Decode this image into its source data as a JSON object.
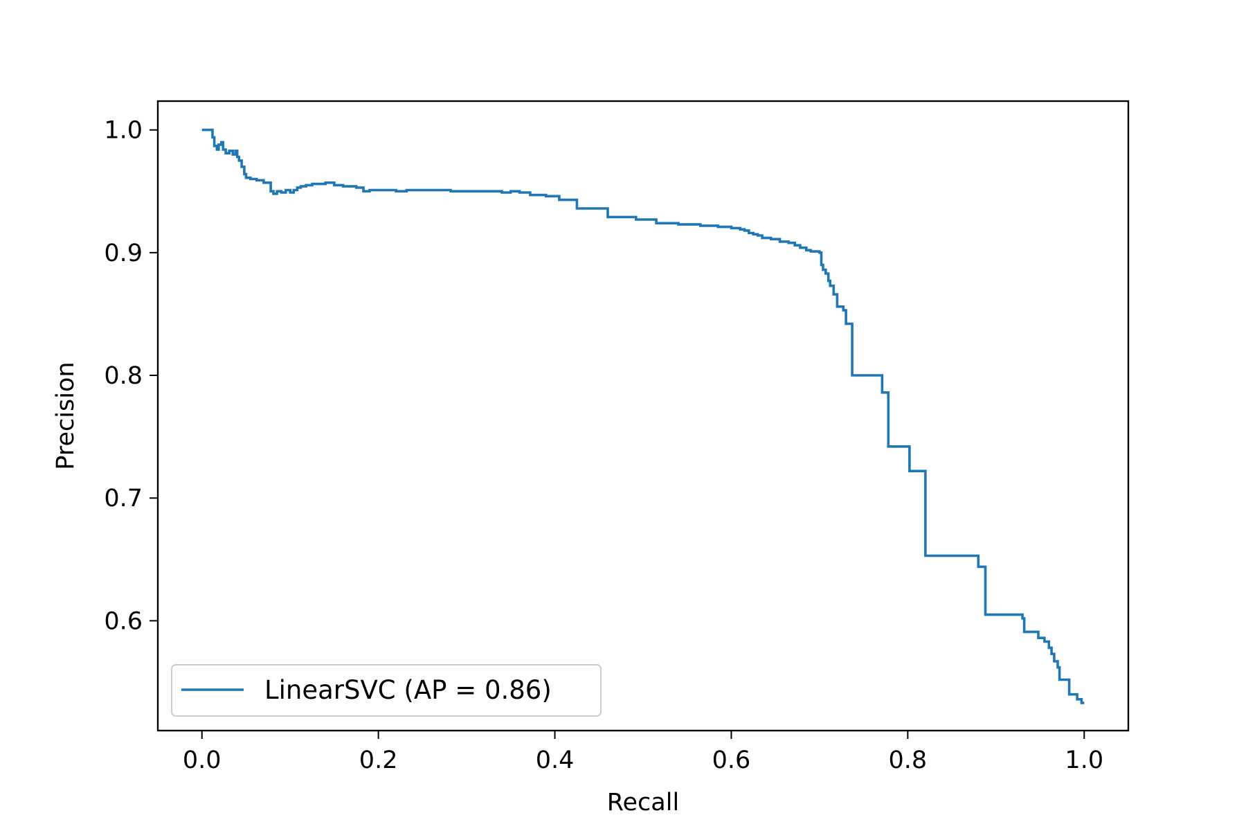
{
  "chart_data": {
    "type": "line",
    "title": "",
    "xlabel": "Recall",
    "ylabel": "Precision",
    "xlim": [
      -0.05,
      1.05
    ],
    "ylim": [
      0.5105,
      1.0235
    ],
    "xticks": [
      0.0,
      0.2,
      0.4,
      0.6,
      0.8,
      1.0
    ],
    "xtick_labels": [
      "0.0",
      "0.2",
      "0.4",
      "0.6",
      "0.8",
      "1.0"
    ],
    "yticks": [
      0.6,
      0.7,
      0.8,
      0.9,
      1.0
    ],
    "ytick_labels": [
      "0.6",
      "0.7",
      "0.8",
      "0.9",
      "1.0"
    ],
    "grid": false,
    "legend_position": "lower-left",
    "drawstyle": "steps-post",
    "series": [
      {
        "name": "LinearSVC (AP = 0.86)",
        "color": "#1f77b4",
        "points": [
          [
            0.0,
            1.0
          ],
          [
            0.012,
            1.0
          ],
          [
            0.012,
            0.994
          ],
          [
            0.014,
            0.987
          ],
          [
            0.017,
            0.984
          ],
          [
            0.019,
            0.988
          ],
          [
            0.022,
            0.99
          ],
          [
            0.024,
            0.984
          ],
          [
            0.027,
            0.981
          ],
          [
            0.031,
            0.983
          ],
          [
            0.035,
            0.98
          ],
          [
            0.038,
            0.983
          ],
          [
            0.04,
            0.978
          ],
          [
            0.042,
            0.975
          ],
          [
            0.045,
            0.97
          ],
          [
            0.048,
            0.964
          ],
          [
            0.05,
            0.961
          ],
          [
            0.055,
            0.96
          ],
          [
            0.062,
            0.959
          ],
          [
            0.07,
            0.957
          ],
          [
            0.078,
            0.95
          ],
          [
            0.081,
            0.948
          ],
          [
            0.085,
            0.95
          ],
          [
            0.09,
            0.949
          ],
          [
            0.095,
            0.951
          ],
          [
            0.1,
            0.949
          ],
          [
            0.104,
            0.951
          ],
          [
            0.108,
            0.953
          ],
          [
            0.112,
            0.954
          ],
          [
            0.118,
            0.955
          ],
          [
            0.125,
            0.956
          ],
          [
            0.14,
            0.957
          ],
          [
            0.15,
            0.955
          ],
          [
            0.16,
            0.954
          ],
          [
            0.175,
            0.953
          ],
          [
            0.183,
            0.95
          ],
          [
            0.19,
            0.951
          ],
          [
            0.21,
            0.951
          ],
          [
            0.22,
            0.95
          ],
          [
            0.232,
            0.951
          ],
          [
            0.25,
            0.951
          ],
          [
            0.27,
            0.951
          ],
          [
            0.28,
            0.951
          ],
          [
            0.282,
            0.95
          ],
          [
            0.3,
            0.95
          ],
          [
            0.32,
            0.95
          ],
          [
            0.335,
            0.95
          ],
          [
            0.34,
            0.949
          ],
          [
            0.35,
            0.95
          ],
          [
            0.36,
            0.949
          ],
          [
            0.372,
            0.947
          ],
          [
            0.39,
            0.946
          ],
          [
            0.405,
            0.943
          ],
          [
            0.425,
            0.936
          ],
          [
            0.46,
            0.929
          ],
          [
            0.492,
            0.927
          ],
          [
            0.515,
            0.924
          ],
          [
            0.54,
            0.923
          ],
          [
            0.565,
            0.922
          ],
          [
            0.585,
            0.921
          ],
          [
            0.6,
            0.92
          ],
          [
            0.605,
            0.92
          ],
          [
            0.61,
            0.919
          ],
          [
            0.615,
            0.918
          ],
          [
            0.62,
            0.916
          ],
          [
            0.625,
            0.915
          ],
          [
            0.63,
            0.914
          ],
          [
            0.635,
            0.912
          ],
          [
            0.645,
            0.911
          ],
          [
            0.655,
            0.909
          ],
          [
            0.665,
            0.908
          ],
          [
            0.672,
            0.906
          ],
          [
            0.678,
            0.904
          ],
          [
            0.685,
            0.902
          ],
          [
            0.69,
            0.901
          ],
          [
            0.7,
            0.9
          ],
          [
            0.702,
            0.89
          ],
          [
            0.704,
            0.886
          ],
          [
            0.707,
            0.883
          ],
          [
            0.71,
            0.877
          ],
          [
            0.712,
            0.873
          ],
          [
            0.716,
            0.866
          ],
          [
            0.72,
            0.856
          ],
          [
            0.727,
            0.853
          ],
          [
            0.73,
            0.842
          ],
          [
            0.737,
            0.8
          ],
          [
            0.771,
            0.786
          ],
          [
            0.778,
            0.742
          ],
          [
            0.802,
            0.722
          ],
          [
            0.82,
            0.653
          ],
          [
            0.88,
            0.644
          ],
          [
            0.888,
            0.605
          ],
          [
            0.93,
            0.602
          ],
          [
            0.932,
            0.591
          ],
          [
            0.948,
            0.586
          ],
          [
            0.955,
            0.583
          ],
          [
            0.96,
            0.578
          ],
          [
            0.963,
            0.573
          ],
          [
            0.966,
            0.567
          ],
          [
            0.97,
            0.562
          ],
          [
            0.972,
            0.552
          ],
          [
            0.983,
            0.54
          ],
          [
            0.992,
            0.536
          ],
          [
            0.997,
            0.533
          ],
          [
            1.0,
            0.533
          ]
        ]
      }
    ]
  }
}
